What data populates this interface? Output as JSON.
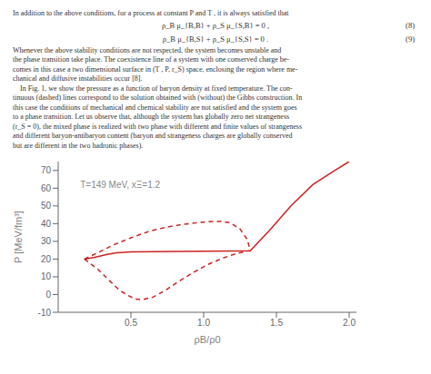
{
  "chart_data": {
    "type": "line",
    "x_label": "ρB/ρ0",
    "y_label": "P [MeV/fm³]",
    "xlim": [
      0.0,
      2.05
    ],
    "ylim": [
      -10,
      75
    ],
    "xticks": [
      0.5,
      {
        "value": 1.0,
        "label": "1.0"
      },
      1.5,
      {
        "value": 2.0,
        "label": "2.0"
      }
    ],
    "yticks": [
      -10,
      0,
      10,
      20,
      30,
      40,
      50,
      60,
      70
    ],
    "grid": false,
    "series": [
      {
        "line_style": "solid",
        "color": "#cc2222",
        "x": [
          0.18,
          0.25,
          0.33,
          0.4,
          0.5,
          0.65,
          0.8,
          1.0,
          1.2,
          1.32,
          1.45,
          1.6,
          1.75,
          1.9,
          2.0
        ],
        "values": [
          20.0,
          21.0,
          22.5,
          23.5,
          24.0,
          24.2,
          24.3,
          24.4,
          24.5,
          24.7,
          36.0,
          50.0,
          62.0,
          70.0,
          75.0
        ]
      },
      {
        "line_style": "dashed",
        "color": "#cc2222",
        "x": [
          0.18,
          0.27,
          0.38,
          0.5,
          0.62,
          0.73,
          0.85,
          0.95,
          1.05,
          1.12,
          1.18,
          1.25,
          1.3,
          1.32
        ],
        "values": [
          20.0,
          23.5,
          28.0,
          32.0,
          35.5,
          37.8,
          39.5,
          40.5,
          41.2,
          41.3,
          40.5,
          37.0,
          31.0,
          24.7
        ]
      },
      {
        "line_style": "dashed",
        "color": "#cc2222",
        "x": [
          0.18,
          0.27,
          0.35,
          0.42,
          0.48,
          0.53,
          0.58,
          0.65,
          0.73,
          0.83,
          0.93,
          1.03,
          1.13,
          1.22,
          1.3,
          1.32
        ],
        "values": [
          20.0,
          14.5,
          8.0,
          2.5,
          -0.5,
          -2.5,
          -2.8,
          -1.5,
          2.0,
          7.5,
          12.5,
          17.0,
          20.5,
          23.0,
          24.5,
          24.7
        ]
      }
    ],
    "annotations": [
      {
        "text": "In addition to the above conditions, for a process at constant P and T , it is always satisfied that"
      },
      {
        "text": "ρ_B μ_{B,B} + ρ_S μ_{S,B} = 0 ,",
        "equation_number": "(8)"
      },
      {
        "text": "ρ_B μ_{B,S} + ρ_S μ_{S,S} = 0 .",
        "equation_number": "(9)"
      },
      {
        "text": "Whenever the above stability conditions are not respected, the system becomes unstable and"
      },
      {
        "text": "the phase transition take place. The coexistence line of a system with one conserved charge be-"
      },
      {
        "text": "comes in this case a two dimensional surface in (T , P, r_S) space, enclosing the region where me-"
      },
      {
        "text": "chanical and diffusive instabilities occur [8]."
      },
      {
        "text": "    In Fig. 1, we show the pressure as a function of baryon density at fixed temperature. The con-"
      },
      {
        "text": "tinuous (dashed) lines correspond to the solution obtained with (without) the Gibbs construction. In"
      },
      {
        "text": "this case the conditions of mechanical and chemical stability are not satisfied and the system goes"
      },
      {
        "text": "to a phase transition. Let us observe that, although the system has globally zero net strangeness"
      },
      {
        "text": "(r_S = 0), the mixed phase is realized with two phase with different and finite values of strangeness"
      },
      {
        "text": "and different baryon-antibaryon content (baryon and strangeness charges are globally conserved"
      },
      {
        "text": "but are different in the two hadronic phases)."
      },
      {
        "text": "T=149 MeV, xΞ=1.2",
        "x": 0.12,
        "y": 62
      }
    ]
  }
}
